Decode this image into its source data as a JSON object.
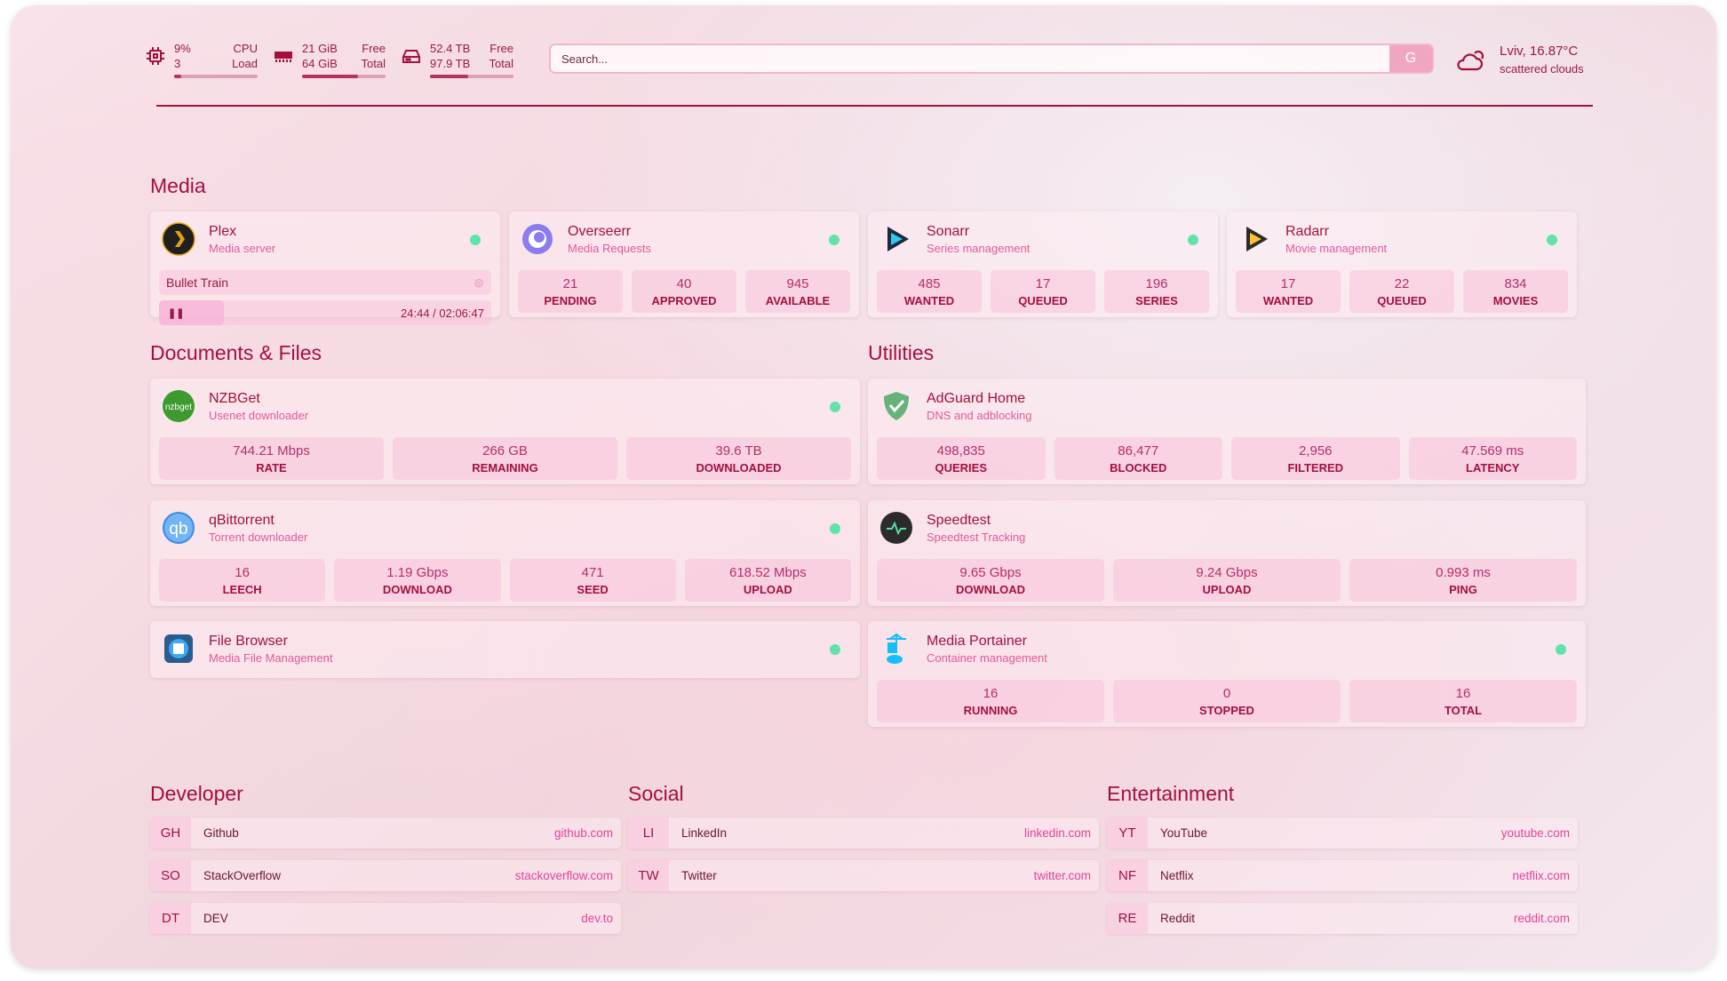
{
  "resources": {
    "cpu": {
      "icon": "cpu-icon",
      "value": "9%",
      "sub": "3",
      "label1": "CPU",
      "label2": "Load",
      "usage": 9
    },
    "memory": {
      "icon": "memory-icon",
      "value": "21 GiB",
      "sub": "64 GiB",
      "label1": "Free",
      "label2": "Total",
      "usage": 67
    },
    "disk": {
      "icon": "disk-icon",
      "value": "52.4 TB",
      "sub": "97.9 TB",
      "label1": "Free",
      "label2": "Total",
      "usage": 46
    }
  },
  "search": {
    "placeholder": "Search...",
    "provider_button": "G"
  },
  "weather": {
    "icon": "cloud-sun-icon",
    "location": "Lviv, 16.87°C",
    "condition": "scattered clouds"
  },
  "colors": {
    "accent": "#a3103f",
    "subtitle": "#e2599a",
    "status_online": "#5fe3a9"
  },
  "sections": {
    "media": "Media",
    "documents": "Documents & Files",
    "utilities": "Utilities",
    "developer": "Developer",
    "social": "Social",
    "entertainment": "Entertainment"
  },
  "services": [
    {
      "id": "plex",
      "name": "Plex",
      "desc": "Media server",
      "icon": "plex-icon",
      "status": "online",
      "now_playing": {
        "title": "Bullet Train",
        "time": "24:44 / 02:06:47",
        "progress": 19.6
      }
    },
    {
      "id": "overseerr",
      "name": "Overseerr",
      "desc": "Media Requests",
      "icon": "overseerr-icon",
      "status": "online",
      "stats": [
        {
          "v": "21",
          "k": "PENDING"
        },
        {
          "v": "40",
          "k": "APPROVED"
        },
        {
          "v": "945",
          "k": "AVAILABLE"
        }
      ]
    },
    {
      "id": "sonarr",
      "name": "Sonarr",
      "desc": "Series management",
      "icon": "sonarr-icon",
      "status": "online",
      "stats": [
        {
          "v": "485",
          "k": "WANTED"
        },
        {
          "v": "17",
          "k": "QUEUED"
        },
        {
          "v": "196",
          "k": "SERIES"
        }
      ]
    },
    {
      "id": "radarr",
      "name": "Radarr",
      "desc": "Movie management",
      "icon": "radarr-icon",
      "status": "online",
      "stats": [
        {
          "v": "17",
          "k": "WANTED"
        },
        {
          "v": "22",
          "k": "QUEUED"
        },
        {
          "v": "834",
          "k": "MOVIES"
        }
      ]
    },
    {
      "id": "nzbget",
      "name": "NZBGet",
      "desc": "Usenet downloader",
      "icon": "nzbget-icon",
      "icon_text": "nzbget",
      "status": "online",
      "stats": [
        {
          "v": "744.21 Mbps",
          "k": "RATE"
        },
        {
          "v": "266 GB",
          "k": "REMAINING"
        },
        {
          "v": "39.6 TB",
          "k": "DOWNLOADED"
        }
      ]
    },
    {
      "id": "qbittorrent",
      "name": "qBittorrent",
      "desc": "Torrent downloader",
      "icon": "qbittorrent-icon",
      "icon_text": "qb",
      "status": "online",
      "stats": [
        {
          "v": "16",
          "k": "LEECH"
        },
        {
          "v": "1.19 Gbps",
          "k": "DOWNLOAD"
        },
        {
          "v": "471",
          "k": "SEED"
        },
        {
          "v": "618.52 Mbps",
          "k": "UPLOAD"
        }
      ]
    },
    {
      "id": "filebrowser",
      "name": "File Browser",
      "desc": "Media File Management",
      "icon": "file-browser-icon",
      "status": "online"
    },
    {
      "id": "adguard",
      "name": "AdGuard Home",
      "desc": "DNS and adblocking",
      "icon": "adguard-shield-icon",
      "stats": [
        {
          "v": "498,835",
          "k": "QUERIES"
        },
        {
          "v": "86,477",
          "k": "BLOCKED"
        },
        {
          "v": "2,956",
          "k": "FILTERED"
        },
        {
          "v": "47.569 ms",
          "k": "LATENCY"
        }
      ]
    },
    {
      "id": "speedtest",
      "name": "Speedtest",
      "desc": "Speedtest Tracking",
      "icon": "speedtest-icon",
      "stats": [
        {
          "v": "9.65 Gbps",
          "k": "DOWNLOAD"
        },
        {
          "v": "9.24 Gbps",
          "k": "UPLOAD"
        },
        {
          "v": "0.993 ms",
          "k": "PING"
        }
      ]
    },
    {
      "id": "portainer",
      "name": "Media Portainer",
      "desc": "Container management",
      "icon": "portainer-icon",
      "status": "online",
      "stats": [
        {
          "v": "16",
          "k": "RUNNING"
        },
        {
          "v": "0",
          "k": "STOPPED"
        },
        {
          "v": "16",
          "k": "TOTAL"
        }
      ]
    }
  ],
  "bookmarks": {
    "developer": [
      {
        "abbr": "GH",
        "label": "Github",
        "url": "github.com"
      },
      {
        "abbr": "SO",
        "label": "StackOverflow",
        "url": "stackoverflow.com"
      },
      {
        "abbr": "DT",
        "label": "DEV",
        "url": "dev.to"
      }
    ],
    "social": [
      {
        "abbr": "LI",
        "label": "LinkedIn",
        "url": "linkedin.com"
      },
      {
        "abbr": "TW",
        "label": "Twitter",
        "url": "twitter.com"
      }
    ],
    "entertainment": [
      {
        "abbr": "YT",
        "label": "YouTube",
        "url": "youtube.com"
      },
      {
        "abbr": "NF",
        "label": "Netflix",
        "url": "netflix.com"
      },
      {
        "abbr": "RE",
        "label": "Reddit",
        "url": "reddit.com"
      }
    ]
  }
}
